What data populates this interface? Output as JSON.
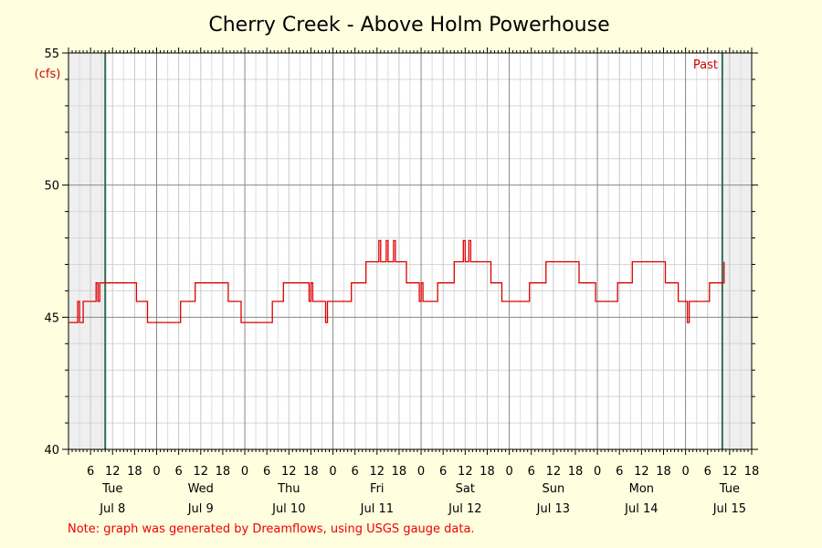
{
  "chart_data": {
    "type": "line",
    "title": "Cherry Creek - Above Holm Powerhouse",
    "ylabel": "(cfs)",
    "xlabel": "",
    "ylim": [
      40,
      55
    ],
    "y_ticks": [
      40,
      45,
      50,
      55
    ],
    "x_range_hours": [
      "Jul 8 00:00",
      "Jul 15 18:00"
    ],
    "hour_ticks": [
      "6",
      "12",
      "18",
      "0",
      "6",
      "12",
      "18",
      "0",
      "6",
      "12",
      "18",
      "0",
      "6",
      "12",
      "18",
      "0",
      "6",
      "12",
      "18",
      "0",
      "6",
      "12",
      "18",
      "0",
      "6",
      "12",
      "18",
      "0",
      "6",
      "12",
      "18"
    ],
    "days": [
      {
        "weekday": "Tue",
        "date": "Jul 8"
      },
      {
        "weekday": "Wed",
        "date": "Jul 9"
      },
      {
        "weekday": "Thu",
        "date": "Jul 10"
      },
      {
        "weekday": "Fri",
        "date": "Jul 11"
      },
      {
        "weekday": "Sat",
        "date": "Jul 12"
      },
      {
        "weekday": "Sun",
        "date": "Jul 13"
      },
      {
        "weekday": "Mon",
        "date": "Jul 14"
      },
      {
        "weekday": "Tue",
        "date": "Jul 15"
      }
    ],
    "past_label": "Past",
    "grid": true,
    "series": [
      {
        "color": "#dd0000",
        "points": [
          [
            "Jul 8 00:00",
            44.8
          ],
          [
            "Jul 8 02:00",
            44.8
          ],
          [
            "Jul 8 02:30",
            45.6
          ],
          [
            "Jul 8 03:00",
            44.8
          ],
          [
            "Jul 8 04:00",
            45.6
          ],
          [
            "Jul 8 07:00",
            45.6
          ],
          [
            "Jul 8 07:30",
            46.3
          ],
          [
            "Jul 8 08:00",
            45.6
          ],
          [
            "Jul 8 08:30",
            46.3
          ],
          [
            "Jul 8 18:00",
            46.3
          ],
          [
            "Jul 8 18:30",
            45.6
          ],
          [
            "Jul 8 21:00",
            45.6
          ],
          [
            "Jul 8 21:30",
            44.8
          ],
          [
            "Jul 9 06:00",
            44.8
          ],
          [
            "Jul 9 06:30",
            45.6
          ],
          [
            "Jul 9 10:00",
            45.6
          ],
          [
            "Jul 9 10:30",
            46.3
          ],
          [
            "Jul 9 19:00",
            46.3
          ],
          [
            "Jul 9 19:30",
            45.6
          ],
          [
            "Jul 9 22:30",
            45.6
          ],
          [
            "Jul 9 23:00",
            44.8
          ],
          [
            "Jul 10 07:00",
            44.8
          ],
          [
            "Jul 10 07:30",
            45.6
          ],
          [
            "Jul 10 10:00",
            45.6
          ],
          [
            "Jul 10 10:30",
            46.3
          ],
          [
            "Jul 10 17:00",
            46.3
          ],
          [
            "Jul 10 17:30",
            45.6
          ],
          [
            "Jul 10 18:00",
            46.3
          ],
          [
            "Jul 10 18:30",
            45.6
          ],
          [
            "Jul 10 21:30",
            45.6
          ],
          [
            "Jul 10 22:00",
            44.8
          ],
          [
            "Jul 10 22:30",
            45.6
          ],
          [
            "Jul 11 04:30",
            45.6
          ],
          [
            "Jul 11 05:00",
            46.3
          ],
          [
            "Jul 11 08:30",
            46.3
          ],
          [
            "Jul 11 09:00",
            47.1
          ],
          [
            "Jul 11 12:00",
            47.1
          ],
          [
            "Jul 11 12:30",
            47.9
          ],
          [
            "Jul 11 13:00",
            47.1
          ],
          [
            "Jul 11 14:00",
            47.1
          ],
          [
            "Jul 11 14:30",
            47.9
          ],
          [
            "Jul 11 15:00",
            47.1
          ],
          [
            "Jul 11 16:00",
            47.1
          ],
          [
            "Jul 11 16:30",
            47.9
          ],
          [
            "Jul 11 17:00",
            47.1
          ],
          [
            "Jul 11 19:30",
            47.1
          ],
          [
            "Jul 11 20:00",
            46.3
          ],
          [
            "Jul 11 23:00",
            46.3
          ],
          [
            "Jul 11 23:30",
            45.6
          ],
          [
            "Jul 12 00:00",
            46.3
          ],
          [
            "Jul 12 00:30",
            45.6
          ],
          [
            "Jul 12 04:00",
            45.6
          ],
          [
            "Jul 12 04:30",
            46.3
          ],
          [
            "Jul 12 08:30",
            46.3
          ],
          [
            "Jul 12 09:00",
            47.1
          ],
          [
            "Jul 12 11:00",
            47.1
          ],
          [
            "Jul 12 11:30",
            47.9
          ],
          [
            "Jul 12 12:00",
            47.1
          ],
          [
            "Jul 12 13:00",
            47.9
          ],
          [
            "Jul 12 13:30",
            47.1
          ],
          [
            "Jul 12 18:30",
            47.1
          ],
          [
            "Jul 12 19:00",
            46.3
          ],
          [
            "Jul 12 21:30",
            46.3
          ],
          [
            "Jul 12 22:00",
            45.6
          ],
          [
            "Jul 13 05:00",
            45.6
          ],
          [
            "Jul 13 05:30",
            46.3
          ],
          [
            "Jul 13 09:30",
            46.3
          ],
          [
            "Jul 13 10:00",
            47.1
          ],
          [
            "Jul 13 18:30",
            47.1
          ],
          [
            "Jul 13 19:00",
            46.3
          ],
          [
            "Jul 13 23:00",
            46.3
          ],
          [
            "Jul 13 23:30",
            45.6
          ],
          [
            "Jul 14 05:00",
            45.6
          ],
          [
            "Jul 14 05:30",
            46.3
          ],
          [
            "Jul 14 09:00",
            46.3
          ],
          [
            "Jul 14 09:30",
            47.1
          ],
          [
            "Jul 14 18:00",
            47.1
          ],
          [
            "Jul 14 18:30",
            46.3
          ],
          [
            "Jul 14 21:30",
            46.3
          ],
          [
            "Jul 14 22:00",
            45.6
          ],
          [
            "Jul 15 00:00",
            45.6
          ],
          [
            "Jul 15 00:30",
            44.8
          ],
          [
            "Jul 15 01:00",
            45.6
          ],
          [
            "Jul 15 06:00",
            45.6
          ],
          [
            "Jul 15 06:30",
            46.3
          ],
          [
            "Jul 15 10:00",
            46.3
          ],
          [
            "Jul 15 10:30",
            47.1
          ]
        ]
      }
    ],
    "note": "Note: graph was generated by Dreamflows, using USGS gauge data."
  }
}
